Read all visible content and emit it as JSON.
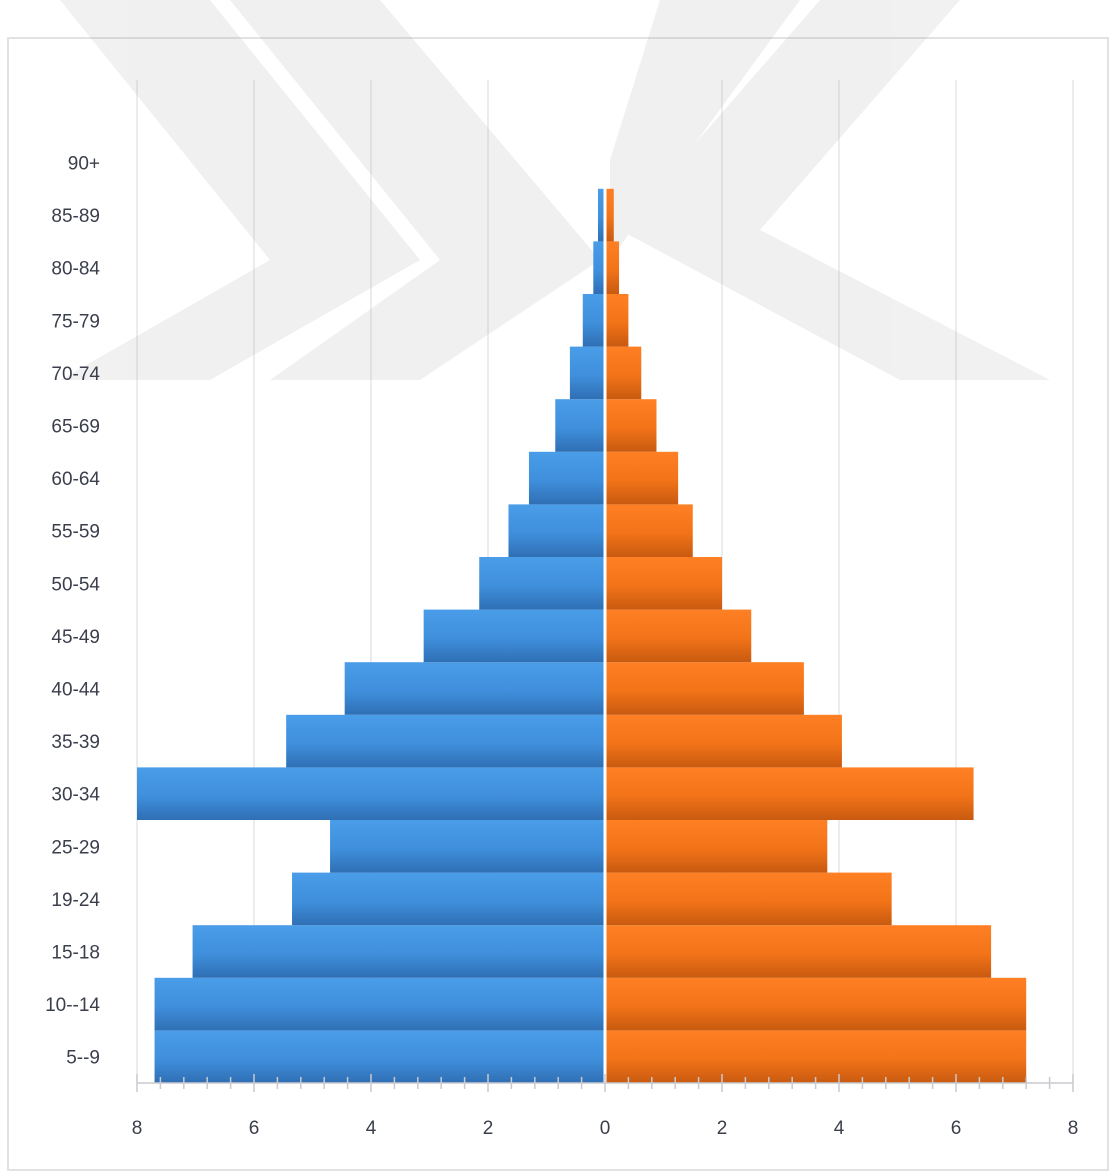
{
  "chart_data": {
    "type": "bar",
    "orientation": "horizontal",
    "layout": "population-pyramid",
    "categories": [
      "5--9",
      "10--14",
      "15-18",
      "19-24",
      "25-29",
      "30-34",
      "35-39",
      "40-44",
      "45-49",
      "50-54",
      "55-59",
      "60-64",
      "65-69",
      "70-74",
      "75-79",
      "80-84",
      "85-89",
      "90+"
    ],
    "series": [
      {
        "side": "left",
        "color": "#3f8fdc",
        "values": [
          7.7,
          7.7,
          7.05,
          5.35,
          4.7,
          8.0,
          5.45,
          4.45,
          3.1,
          2.15,
          1.65,
          1.3,
          0.85,
          0.6,
          0.38,
          0.2,
          0.12,
          0.0
        ]
      },
      {
        "side": "right",
        "color": "#f27318",
        "values": [
          7.2,
          7.2,
          6.6,
          4.9,
          3.8,
          6.3,
          4.05,
          3.4,
          2.5,
          2.0,
          1.5,
          1.25,
          0.88,
          0.62,
          0.4,
          0.24,
          0.15,
          0.0
        ]
      }
    ],
    "xticks": [
      "8",
      "6",
      "4",
      "2",
      "0",
      "2",
      "4",
      "6",
      "8"
    ],
    "xlim": [
      -8,
      8
    ],
    "title": "",
    "xlabel": "",
    "ylabel": "",
    "grid": true,
    "legend": "none"
  }
}
